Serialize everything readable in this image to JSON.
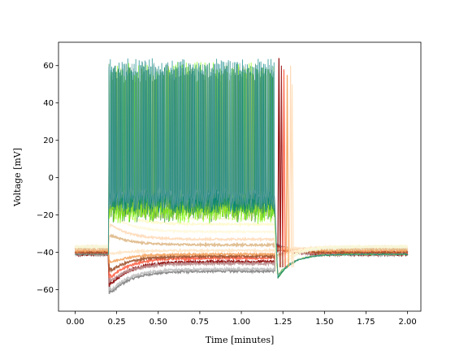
{
  "chart_data": {
    "type": "line",
    "title": "",
    "xlabel": "Time [minutes]",
    "ylabel": "Voltage [mV]",
    "xlim": [
      -0.1,
      2.08
    ],
    "ylim": [
      -71.5,
      72.5
    ],
    "xticks": [
      0.0,
      0.25,
      0.5,
      0.75,
      1.0,
      1.25,
      1.5,
      1.75,
      2.0
    ],
    "xtick_labels": [
      "0.00",
      "0.25",
      "0.50",
      "0.75",
      "1.00",
      "1.25",
      "1.50",
      "1.75",
      "2.00"
    ],
    "yticks": [
      -60,
      -40,
      -20,
      0,
      20,
      40,
      60
    ],
    "ytick_labels": [
      "−60",
      "−40",
      "−20",
      "0",
      "20",
      "40",
      "60"
    ],
    "grid": false,
    "legend": "none",
    "stimulus": {
      "on": 0.2,
      "off": 1.2
    },
    "series": [
      {
        "color": "#808080",
        "baseline": -41,
        "step_peak": -63.5,
        "step_plateau": -50,
        "rebound": -35,
        "noise": 0.6
      },
      {
        "color": "#c0c0c0",
        "baseline": -41,
        "step_peak": -62,
        "step_plateau": -49,
        "rebound": -36,
        "noise": 0.6
      },
      {
        "color": "#8b0000",
        "baseline": -41,
        "step_peak": -59,
        "step_plateau": -45,
        "rebound": -36,
        "noise": 0.6
      },
      {
        "color": "#bc8f8f",
        "baseline": -41,
        "step_peak": -57,
        "step_plateau": -46,
        "rebound": -37,
        "noise": 0.6
      },
      {
        "color": "#ff6347",
        "baseline": -40,
        "step_peak": -55,
        "step_plateau": -43,
        "rebound": -37,
        "noise": 0.6
      },
      {
        "color": "#a0522d",
        "baseline": -40,
        "step_peak": -51,
        "step_plateau": -42,
        "rebound": -38,
        "noise": 0.6
      },
      {
        "color": "#f4a460",
        "baseline": -39,
        "step_peak": -46,
        "step_plateau": -41,
        "rebound": -38,
        "noise": 0.5
      },
      {
        "color": "#ffe4c4",
        "baseline": -38,
        "step_peak": -41,
        "step_plateau": -39,
        "rebound": -38,
        "noise": 0.5
      },
      {
        "color": "#deb887",
        "baseline": -38,
        "step_peak": -30,
        "step_plateau": -36,
        "rebound": -42,
        "noise": 0.5
      },
      {
        "color": "#ffdab9",
        "baseline": -37,
        "step_peak": -24,
        "step_plateau": -33,
        "rebound": -44,
        "noise": 0.5
      },
      {
        "color": "#fff8dc",
        "baseline": -37,
        "step_peak": -18,
        "step_plateau": -29,
        "rebound": -46,
        "noise": 0.5
      },
      {
        "color": "#fffacd",
        "baseline": -37,
        "step_peak": -14,
        "step_plateau": -25,
        "rebound": -50,
        "noise": 0.5
      },
      {
        "color": "#f5f5dc",
        "baseline": -37,
        "step_peak": -12,
        "step_plateau": -22,
        "rebound": -53,
        "noise": 0.5
      }
    ],
    "spiking_series": [
      {
        "color": "#228b22",
        "baseline": -41,
        "spike_peak": 55,
        "trough": -17,
        "rate_per_minute": 90,
        "rebound": -57
      },
      {
        "color": "#7cfc00",
        "baseline": -41,
        "spike_peak": 58,
        "trough": -18,
        "rate_per_minute": 80,
        "rebound": -56
      },
      {
        "color": "#9acd32",
        "baseline": -41,
        "spike_peak": 56,
        "trough": -16,
        "rate_per_minute": 70,
        "rebound": -55
      },
      {
        "color": "#2e8b57",
        "baseline": -41,
        "spike_peak": 57,
        "trough": -13,
        "rate_per_minute": 100,
        "rebound": -57
      },
      {
        "color": "#008080",
        "baseline": -41,
        "spike_peak": 60,
        "trough": -12,
        "rate_per_minute": 110,
        "rebound": -56
      },
      {
        "color": "#5f9ea0",
        "baseline": -41,
        "spike_peak": 58,
        "trough": -10,
        "rate_per_minute": 95,
        "rebound": -55
      }
    ],
    "offset_spikes": [
      {
        "color": "#8b0000",
        "x": 1.22,
        "peak": 64
      },
      {
        "color": "#a52a2a",
        "x": 1.235,
        "peak": 60
      },
      {
        "color": "#ff6347",
        "x": 1.25,
        "peak": 58
      },
      {
        "color": "#f4a460",
        "x": 1.27,
        "peak": 55
      },
      {
        "color": "#ffdab9",
        "x": 1.29,
        "peak": 60
      },
      {
        "color": "#ffe4c4",
        "x": 1.3,
        "peak": 50
      }
    ]
  }
}
